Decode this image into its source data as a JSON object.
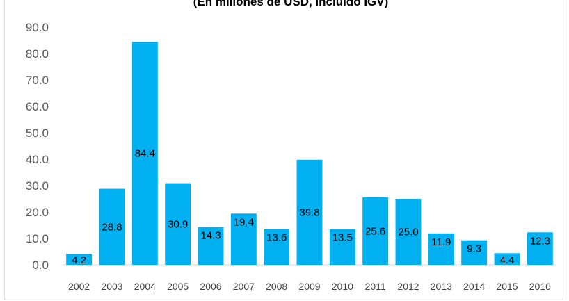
{
  "chart_data": {
    "type": "bar",
    "title": "(En millones de USD, incluido IGV)",
    "xlabel": "",
    "ylabel": "",
    "categories": [
      "2002",
      "2003",
      "2004",
      "2005",
      "2006",
      "2007",
      "2008",
      "2009",
      "2010",
      "2011",
      "2012",
      "2013",
      "2014",
      "2015",
      "2016"
    ],
    "values": [
      4.2,
      28.8,
      84.4,
      30.9,
      14.3,
      19.4,
      13.6,
      39.8,
      13.5,
      25.6,
      25.0,
      11.9,
      9.3,
      4.4,
      12.3
    ],
    "value_labels": [
      "4.2",
      "28.8",
      "84.4",
      "30.9",
      "14.3",
      "19.4",
      "13.6",
      "39.8",
      "13.5",
      "25.6",
      "25.0",
      "11.9",
      "9.3",
      "4.4",
      "12.3"
    ],
    "ylim": [
      0,
      90
    ],
    "yticks": [
      0,
      10,
      20,
      30,
      40,
      50,
      60,
      70,
      80,
      90
    ],
    "ytick_labels": [
      "0.0",
      "10.0",
      "20.0",
      "30.0",
      "40.0",
      "50.0",
      "60.0",
      "70.0",
      "80.0",
      "90.0"
    ],
    "bar_color": "#00b0f0",
    "grid": false,
    "legend": "none"
  }
}
